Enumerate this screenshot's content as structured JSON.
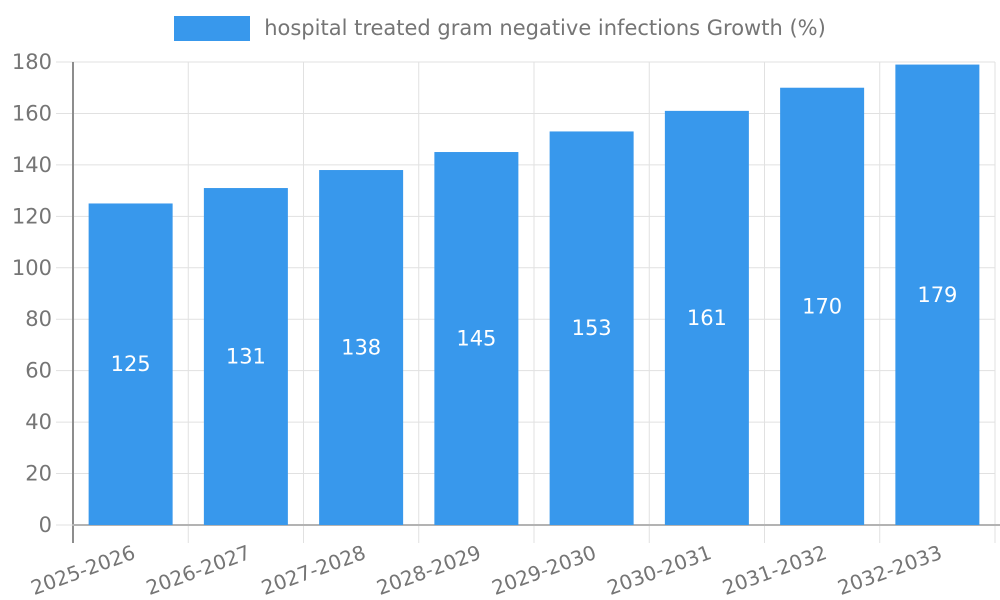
{
  "chart_data": {
    "type": "bar",
    "legend": "hospital treated gram negative infections Growth (%)",
    "legend_position": "top-center",
    "categories": [
      "2025-2026",
      "2026-2027",
      "2027-2028",
      "2028-2029",
      "2029-2030",
      "2030-2031",
      "2031-2032",
      "2032-2033"
    ],
    "series": [
      {
        "name": "hospital treated gram negative infections Growth (%)",
        "values": [
          125,
          131,
          138,
          145,
          153,
          161,
          170,
          179
        ]
      }
    ],
    "title": "",
    "xlabel": "",
    "ylabel": "",
    "ylim": [
      0,
      180
    ],
    "yticks": [
      0,
      20,
      40,
      60,
      80,
      100,
      120,
      140,
      160,
      180
    ],
    "grid": true,
    "colors": {
      "bar": "#3898EC",
      "value_label": "#FFFFFF",
      "tick_text": "#757575",
      "legend_text": "#757575",
      "gridline": "#E1E1E1",
      "y_axis_line": "#8D8D8D",
      "x_axis_line": "#B3B3B3"
    }
  }
}
